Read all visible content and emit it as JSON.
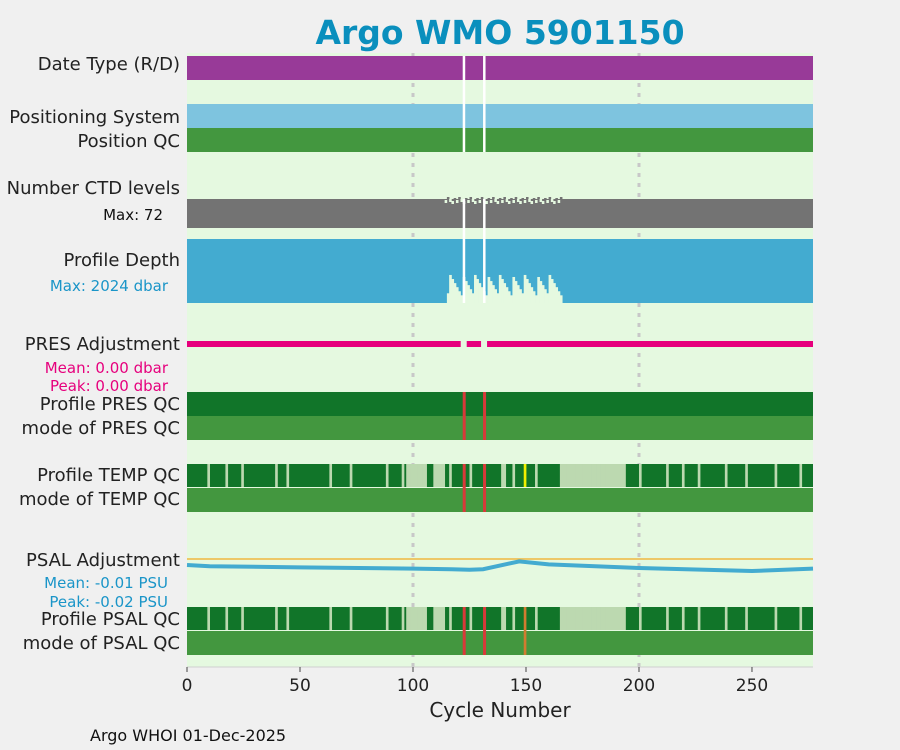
{
  "chart_data": {
    "type": "bar",
    "title": "Argo WMO 5901150",
    "xlabel": "Cycle Number",
    "xlim": [
      0,
      277
    ],
    "x_ticks": [
      "0",
      "50",
      "100",
      "150",
      "200",
      "250"
    ],
    "x_tick_values": [
      0,
      50,
      100,
      150,
      200,
      250
    ],
    "grid_x": [
      100,
      200
    ],
    "footer": "Argo WHOI 01-Dec-2025",
    "colors": {
      "background": "#e5f9e0",
      "date_type": "#983a98",
      "positioning": "#7ec4df",
      "qc_good": "#43973f",
      "qc_dark": "#117529",
      "qc_light": "#bcd9b0",
      "ctd": "#737373",
      "depth": "#43abd0",
      "pres": "#e6007d",
      "psal": "#43abd0",
      "psal_ref": "#f0b840",
      "bad": "#d83a3a",
      "probably_bad": "#d07c30",
      "yellow": "#f0f000",
      "grid": "#c8c8c8"
    },
    "gap_cycles": [
      122,
      131
    ],
    "rows": {
      "date_type": {
        "label": "Date Type (R/D)"
      },
      "positioning": {
        "label": "Positioning System"
      },
      "position_qc": {
        "label": "Position QC"
      },
      "ctd_levels": {
        "label": "Number CTD levels",
        "max_label": "Max: 72"
      },
      "profile_depth": {
        "label": "Profile Depth",
        "max_label": "Max: 2024 dbar"
      },
      "pres_adjust": {
        "label": "PRES Adjustment",
        "mean_label": "Mean: 0.00 dbar",
        "peak_label": "Peak: 0.00 dbar"
      },
      "profile_pres_qc": {
        "label": "Profile PRES QC"
      },
      "mode_pres_qc": {
        "label": "mode of PRES QC"
      },
      "profile_temp_qc": {
        "label": "Profile TEMP QC"
      },
      "mode_temp_qc": {
        "label": "mode of TEMP QC"
      },
      "psal_adjust": {
        "label": "PSAL Adjustment",
        "mean_label": "Mean: -0.01 PSU",
        "peak_label": "Peak: -0.02 PSU"
      },
      "profile_psal_qc": {
        "label": "Profile PSAL QC"
      },
      "mode_psal_qc": {
        "label": "mode of PSAL QC"
      }
    },
    "psal_adjustment_series": {
      "x": [
        0,
        10,
        50,
        100,
        117,
        125,
        131,
        142,
        147,
        160,
        200,
        250,
        277
      ],
      "y": [
        -0.01,
        -0.012,
        -0.014,
        -0.016,
        -0.017,
        -0.018,
        -0.017,
        -0.008,
        -0.004,
        -0.009,
        -0.015,
        -0.02,
        -0.016
      ]
    },
    "profile_depth_low_segments": [
      {
        "from": 115,
        "to": 166,
        "level": 0.7
      }
    ],
    "temp_qc_light_cycles": [
      9,
      17,
      24,
      39,
      44,
      63,
      72,
      88,
      95,
      97,
      98,
      99,
      100,
      101,
      102,
      103,
      104,
      105,
      109,
      110,
      111,
      112,
      113,
      116,
      125,
      139,
      140,
      144,
      154,
      165,
      166,
      167,
      168,
      169,
      170,
      171,
      172,
      173,
      174,
      175,
      176,
      177,
      178,
      179,
      180,
      181,
      182,
      183,
      184,
      185,
      186,
      187,
      188,
      189,
      190,
      191,
      192,
      193,
      200,
      212,
      219,
      226,
      238,
      247,
      260,
      271
    ],
    "temp_qc_yellow_cycles": [
      149
    ],
    "psal_qc_light_cycles": [
      9,
      17,
      24,
      39,
      44,
      63,
      72,
      88,
      95,
      97,
      98,
      99,
      100,
      101,
      102,
      103,
      104,
      105,
      109,
      110,
      111,
      112,
      113,
      116,
      125,
      139,
      140,
      144,
      154,
      165,
      166,
      167,
      168,
      169,
      170,
      171,
      172,
      173,
      174,
      175,
      176,
      177,
      178,
      179,
      180,
      181,
      182,
      183,
      184,
      185,
      186,
      187,
      188,
      189,
      190,
      191,
      192,
      193,
      200,
      212,
      219,
      226,
      238,
      247,
      260,
      271
    ],
    "psal_qc_orange_cycles": [
      149
    ]
  }
}
